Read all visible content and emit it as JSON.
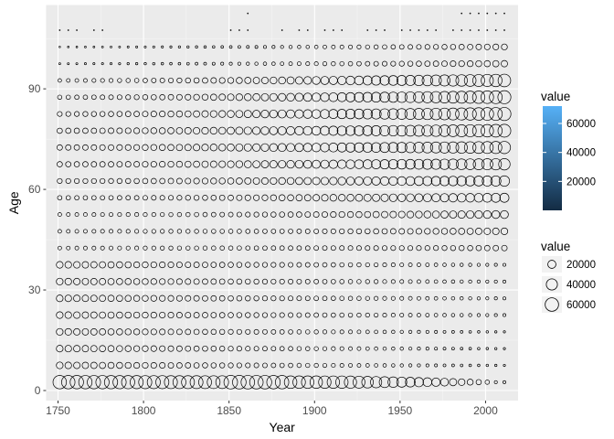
{
  "chart_data": {
    "type": "scatter",
    "subtype": "bubble",
    "title": "",
    "xlabel": "Year",
    "ylabel": "Age",
    "xlim": [
      1743,
      2019
    ],
    "ylim": [
      -3,
      115
    ],
    "x_ticks": [
      1750,
      1800,
      1850,
      1900,
      1950,
      2000
    ],
    "y_ticks": [
      0,
      30,
      60,
      90
    ],
    "x_range": [
      1751,
      2013
    ],
    "x_step": 5,
    "age_groups": [
      2.5,
      7.5,
      12.5,
      17.5,
      22.5,
      27.5,
      32.5,
      37.5,
      42.5,
      47.5,
      52.5,
      57.5,
      62.5,
      67.5,
      72.5,
      77.5,
      82.5,
      87.5,
      92.5,
      97.5,
      102.5,
      107.5,
      112.5
    ],
    "panel_background": "#ebebeb",
    "grid": true,
    "grid_color": "#ffffff",
    "point_stroke": "#000000",
    "legend_position": "right",
    "legends": {
      "color": {
        "title": "value",
        "type": "colorbar",
        "range": [
          1,
          72000
        ],
        "breaks": [
          20000,
          40000,
          60000
        ],
        "low_color": "#132b43",
        "high_color": "#56b1f7"
      },
      "size": {
        "title": "value",
        "type": "size",
        "breaks": [
          20000,
          40000,
          60000
        ]
      }
    },
    "value_max": 72000,
    "value_min": 1
  }
}
